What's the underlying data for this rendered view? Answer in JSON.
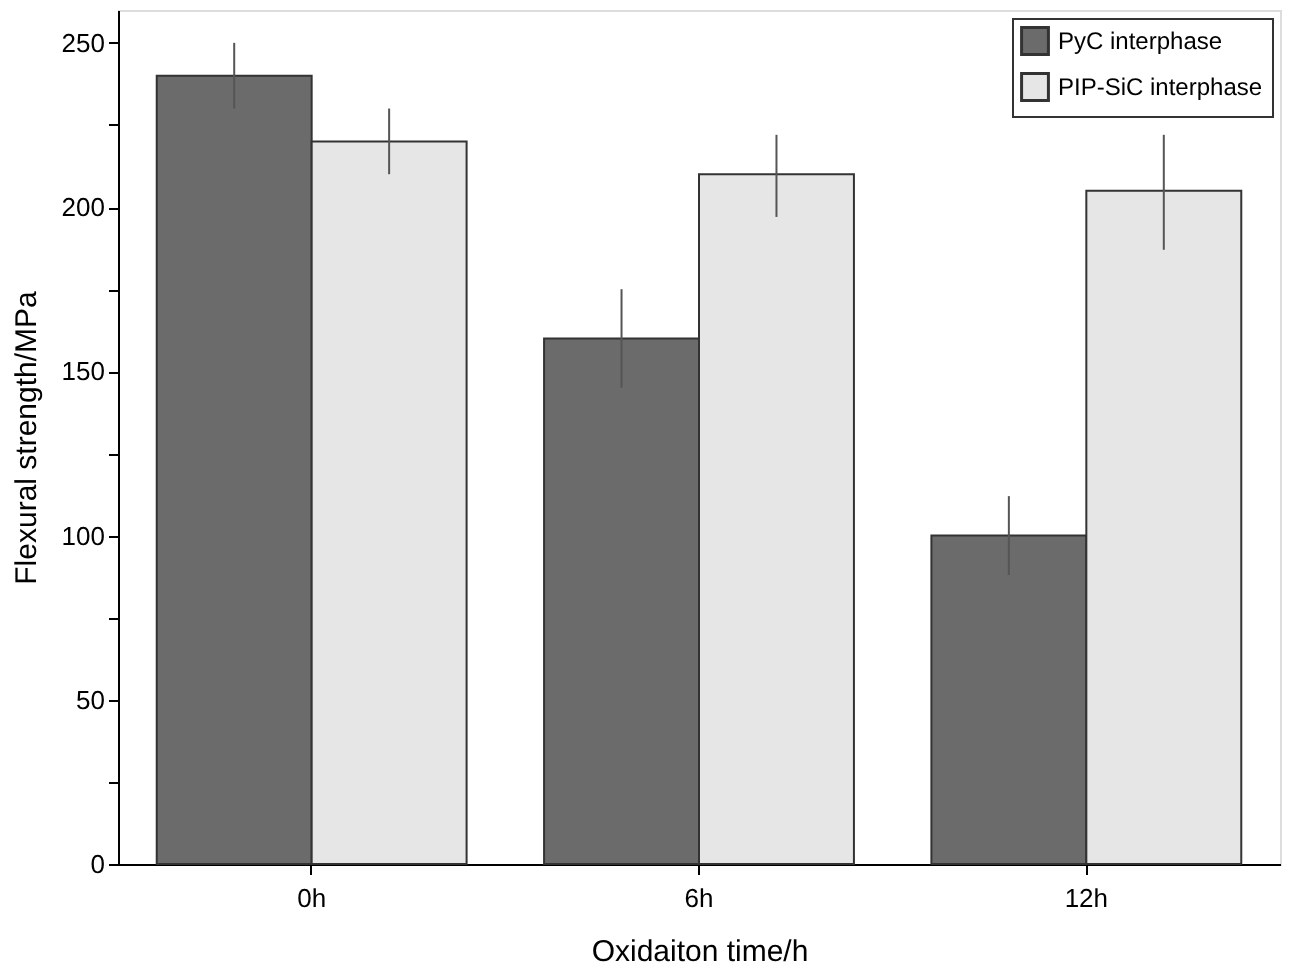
{
  "chart_data": {
    "type": "bar",
    "xlabel": "Oxidaiton time/h",
    "ylabel": "Flexural strength/MPa",
    "categories": [
      "0h",
      "6h",
      "12h"
    ],
    "series": [
      {
        "name": "PyC interphase",
        "color": "#6b6b6b",
        "values": [
          240,
          160,
          100
        ],
        "errors": [
          [
            230,
            250
          ],
          [
            145,
            175
          ],
          [
            88,
            112
          ]
        ]
      },
      {
        "name": "PIP-SiC interphase",
        "color": "#e6e6e6",
        "values": [
          220,
          210,
          205
        ],
        "errors": [
          [
            210,
            230
          ],
          [
            197,
            222
          ],
          [
            187,
            222
          ]
        ]
      }
    ],
    "ylim": [
      0,
      260
    ],
    "yticks": [
      0,
      {
        "value": 25,
        "label": null
      },
      50,
      {
        "value": 75,
        "label": null
      },
      100,
      {
        "value": 125,
        "label": null
      },
      150,
      {
        "value": 175,
        "label": null
      },
      200,
      {
        "value": 225,
        "label": null
      },
      250
    ],
    "legend": "top right",
    "grid": false
  }
}
